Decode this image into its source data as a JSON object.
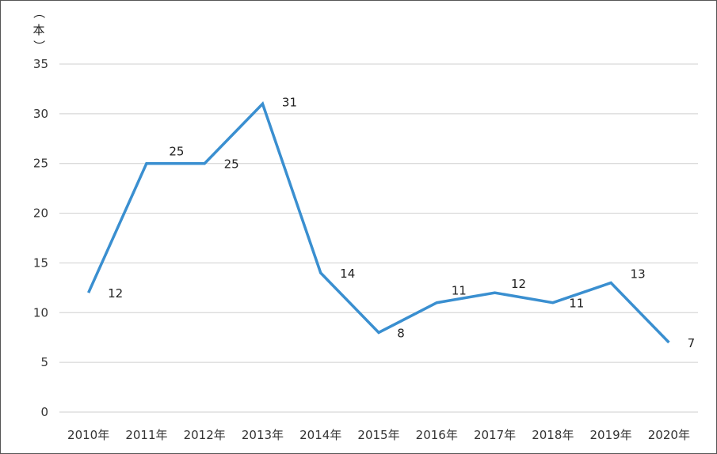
{
  "chart_data": {
    "type": "line",
    "title": "",
    "unit_label_chars": [
      "（",
      "本",
      "）"
    ],
    "categories": [
      "2010年",
      "2011年",
      "2012年",
      "2013年",
      "2014年",
      "2015年",
      "2016年",
      "2017年",
      "2018年",
      "2019年",
      "2020年"
    ],
    "series": [
      {
        "values": [
          12,
          25,
          25,
          31,
          14,
          8,
          11,
          12,
          11,
          13,
          7
        ],
        "color": "#3a8fd0"
      }
    ],
    "data_labels": [
      "12",
      "25",
      "25",
      "31",
      "14",
      "8",
      "11",
      "12",
      "11",
      "13",
      "7"
    ],
    "yticks": [
      "0",
      "5",
      "10",
      "15",
      "20",
      "25",
      "30",
      "35"
    ],
    "ylim": [
      0,
      35
    ],
    "grid": true,
    "legend": "none",
    "colors": {
      "line": "#3a8fd0",
      "grid": "#cfcfcf",
      "text": "#333333"
    }
  }
}
